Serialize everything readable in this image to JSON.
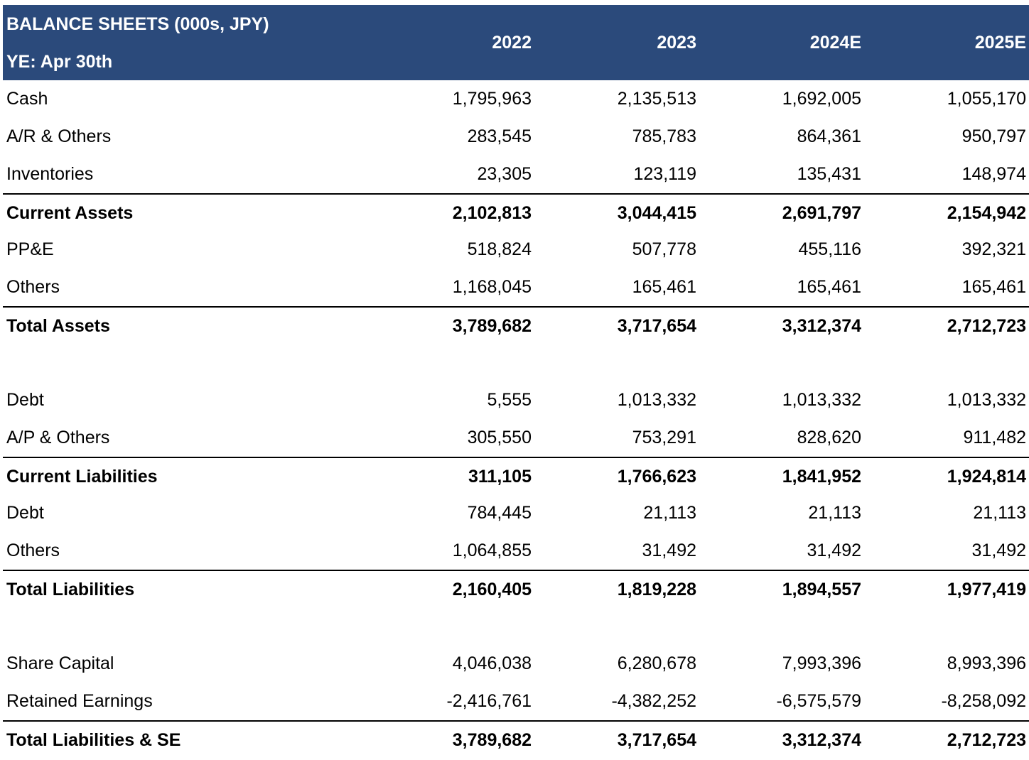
{
  "header": {
    "title": "BALANCE SHEETS (000s, JPY)",
    "subtitle": "YE: Apr 30th",
    "years": [
      "2022",
      "2023",
      "2024E",
      "2025E"
    ],
    "background_color": "#2b4a7b",
    "text_color": "#ffffff"
  },
  "rows": [
    {
      "label": "Cash",
      "values": [
        "1,795,963",
        "2,135,513",
        "1,692,005",
        "1,055,170"
      ],
      "bold": false
    },
    {
      "label": "A/R & Others",
      "values": [
        "283,545",
        "785,783",
        "864,361",
        "950,797"
      ],
      "bold": false
    },
    {
      "label": "Inventories",
      "values": [
        "23,305",
        "123,119",
        "135,431",
        "148,974"
      ],
      "bold": false
    },
    {
      "label": "Current Assets",
      "values": [
        "2,102,813",
        "3,044,415",
        "2,691,797",
        "2,154,942"
      ],
      "bold": true
    },
    {
      "label": "PP&E",
      "values": [
        "518,824",
        "507,778",
        "455,116",
        "392,321"
      ],
      "bold": false
    },
    {
      "label": "Others",
      "values": [
        "1,168,045",
        "165,461",
        "165,461",
        "165,461"
      ],
      "bold": false
    },
    {
      "label": "Total Assets",
      "values": [
        "3,789,682",
        "3,717,654",
        "3,312,374",
        "2,712,723"
      ],
      "bold": true
    },
    {
      "spacer": true
    },
    {
      "label": "Debt",
      "values": [
        "5,555",
        "1,013,332",
        "1,013,332",
        "1,013,332"
      ],
      "bold": false
    },
    {
      "label": "A/P & Others",
      "values": [
        "305,550",
        "753,291",
        "828,620",
        "911,482"
      ],
      "bold": false
    },
    {
      "label": "Current Liabilities",
      "values": [
        "311,105",
        "1,766,623",
        "1,841,952",
        "1,924,814"
      ],
      "bold": true
    },
    {
      "label": "Debt",
      "values": [
        "784,445",
        "21,113",
        "21,113",
        "21,113"
      ],
      "bold": false
    },
    {
      "label": "Others",
      "values": [
        "1,064,855",
        "31,492",
        "31,492",
        "31,492"
      ],
      "bold": false
    },
    {
      "label": "Total Liabilities",
      "values": [
        "2,160,405",
        "1,819,228",
        "1,894,557",
        "1,977,419"
      ],
      "bold": true
    },
    {
      "spacer": true
    },
    {
      "label": "Share Capital",
      "values": [
        "4,046,038",
        "6,280,678",
        "7,993,396",
        "8,993,396"
      ],
      "bold": false
    },
    {
      "label": "Retained Earnings",
      "values": [
        "-2,416,761",
        "-4,382,252",
        "-6,575,579",
        "-8,258,092"
      ],
      "bold": false
    },
    {
      "label": "Total Liabilities & SE",
      "values": [
        "3,789,682",
        "3,717,654",
        "3,312,374",
        "2,712,723"
      ],
      "bold": true
    }
  ]
}
